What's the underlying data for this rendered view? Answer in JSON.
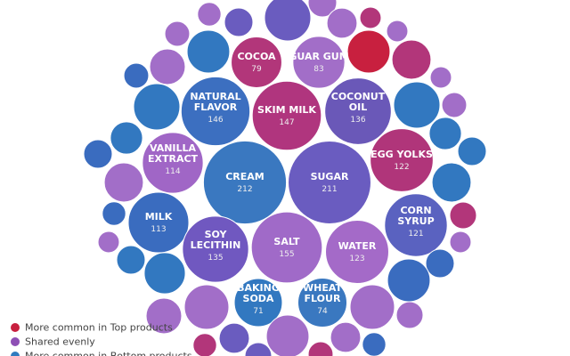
{
  "chart_data": {
    "type": "bubble",
    "legend": [
      {
        "name": "More common in Top products",
        "color": "#c8203f"
      },
      {
        "name": "Shared evenly",
        "color": "#8e4fb5"
      },
      {
        "name": "More common in Bottom products",
        "color": "#2f7bbf"
      }
    ],
    "bubbles": [
      {
        "label": "COCOA",
        "value": 79,
        "color": "#b2367a"
      },
      {
        "label": "GUAR GUM",
        "value": 83,
        "color": "#a26ec8"
      },
      {
        "label": "NATURAL\nFLAVOR",
        "value": 146,
        "color": "#3c6fc0"
      },
      {
        "label": "SKIM MILK",
        "value": 147,
        "color": "#b0357e"
      },
      {
        "label": "COCONUT\nOIL",
        "value": 136,
        "color": "#6a58b8"
      },
      {
        "label": "VANILLA\nEXTRACT",
        "value": 114,
        "color": "#a066c6"
      },
      {
        "label": "EGG YOLKS",
        "value": 122,
        "color": "#b0357a"
      },
      {
        "label": "CREAM",
        "value": 212,
        "color": "#3a78c0"
      },
      {
        "label": "SUGAR",
        "value": 211,
        "color": "#6a5cc0"
      },
      {
        "label": "MILK",
        "value": 113,
        "color": "#3a6cbf"
      },
      {
        "label": "CORN\nSYRUP",
        "value": 121,
        "color": "#5a62c0"
      },
      {
        "label": "SOY\nLECITHIN",
        "value": 135,
        "color": "#7058c0"
      },
      {
        "label": "SALT",
        "value": 155,
        "color": "#a06ac8"
      },
      {
        "label": "WATER",
        "value": 123,
        "color": "#a46ac8"
      },
      {
        "label": "BAKING\nSODA",
        "value": 71,
        "color": "#3278c0"
      },
      {
        "label": "WHEAT\nFLOUR",
        "value": 74,
        "color": "#3a78c0"
      },
      {
        "label": null,
        "value": 66,
        "color": "#6a5cbf"
      },
      {
        "label": null,
        "value": 25,
        "color": "#6a5cbf"
      },
      {
        "label": null,
        "value": 17,
        "color": "#a26ec8"
      },
      {
        "label": null,
        "value": 25,
        "color": "#a26ec8"
      },
      {
        "label": null,
        "value": 28,
        "color": "#a26ec8"
      },
      {
        "label": null,
        "value": 14,
        "color": "#b2367a"
      },
      {
        "label": null,
        "value": 56,
        "color": "#c8203f"
      },
      {
        "label": null,
        "value": 14,
        "color": "#a26ec8"
      },
      {
        "label": null,
        "value": 47,
        "color": "#b2367a"
      },
      {
        "label": null,
        "value": 14,
        "color": "#a26ec8"
      },
      {
        "label": null,
        "value": 19,
        "color": "#a26ec8"
      },
      {
        "label": null,
        "value": 56,
        "color": "#3278c0"
      },
      {
        "label": null,
        "value": 39,
        "color": "#a26ec8"
      },
      {
        "label": null,
        "value": 19,
        "color": "#3a6cbf"
      },
      {
        "label": null,
        "value": 66,
        "color": "#3278c0"
      },
      {
        "label": null,
        "value": 66,
        "color": "#3278c0"
      },
      {
        "label": null,
        "value": 19,
        "color": "#a26ec8"
      },
      {
        "label": null,
        "value": 32,
        "color": "#3278c0"
      },
      {
        "label": null,
        "value": 25,
        "color": "#3a6cbf"
      },
      {
        "label": null,
        "value": 32,
        "color": "#3278c0"
      },
      {
        "label": null,
        "value": 25,
        "color": "#3278c0"
      },
      {
        "label": null,
        "value": 47,
        "color": "#a26ec8"
      },
      {
        "label": null,
        "value": 47,
        "color": "#3278c0"
      },
      {
        "label": null,
        "value": 17,
        "color": "#3a6cbf"
      },
      {
        "label": null,
        "value": 22,
        "color": "#b2367a"
      },
      {
        "label": null,
        "value": 14,
        "color": "#a26ec8"
      },
      {
        "label": null,
        "value": 14,
        "color": "#a26ec8"
      },
      {
        "label": null,
        "value": 25,
        "color": "#3278c0"
      },
      {
        "label": null,
        "value": 25,
        "color": "#3a6cbf"
      },
      {
        "label": null,
        "value": 52,
        "color": "#3278c0"
      },
      {
        "label": null,
        "value": 56,
        "color": "#3a6cbf"
      },
      {
        "label": null,
        "value": 61,
        "color": "#a26ec8"
      },
      {
        "label": null,
        "value": 61,
        "color": "#a26ec8"
      },
      {
        "label": null,
        "value": 39,
        "color": "#a26ec8"
      },
      {
        "label": null,
        "value": 22,
        "color": "#a26ec8"
      },
      {
        "label": null,
        "value": 17,
        "color": "#b2367a"
      },
      {
        "label": null,
        "value": 28,
        "color": "#6a5cbf"
      },
      {
        "label": null,
        "value": 56,
        "color": "#a26ec8"
      },
      {
        "label": null,
        "value": 28,
        "color": "#a26ec8"
      },
      {
        "label": null,
        "value": 17,
        "color": "#3a6cbf"
      },
      {
        "label": null,
        "value": 22,
        "color": "#6a5cbf"
      },
      {
        "label": null,
        "value": 19,
        "color": "#b2367a"
      }
    ]
  }
}
